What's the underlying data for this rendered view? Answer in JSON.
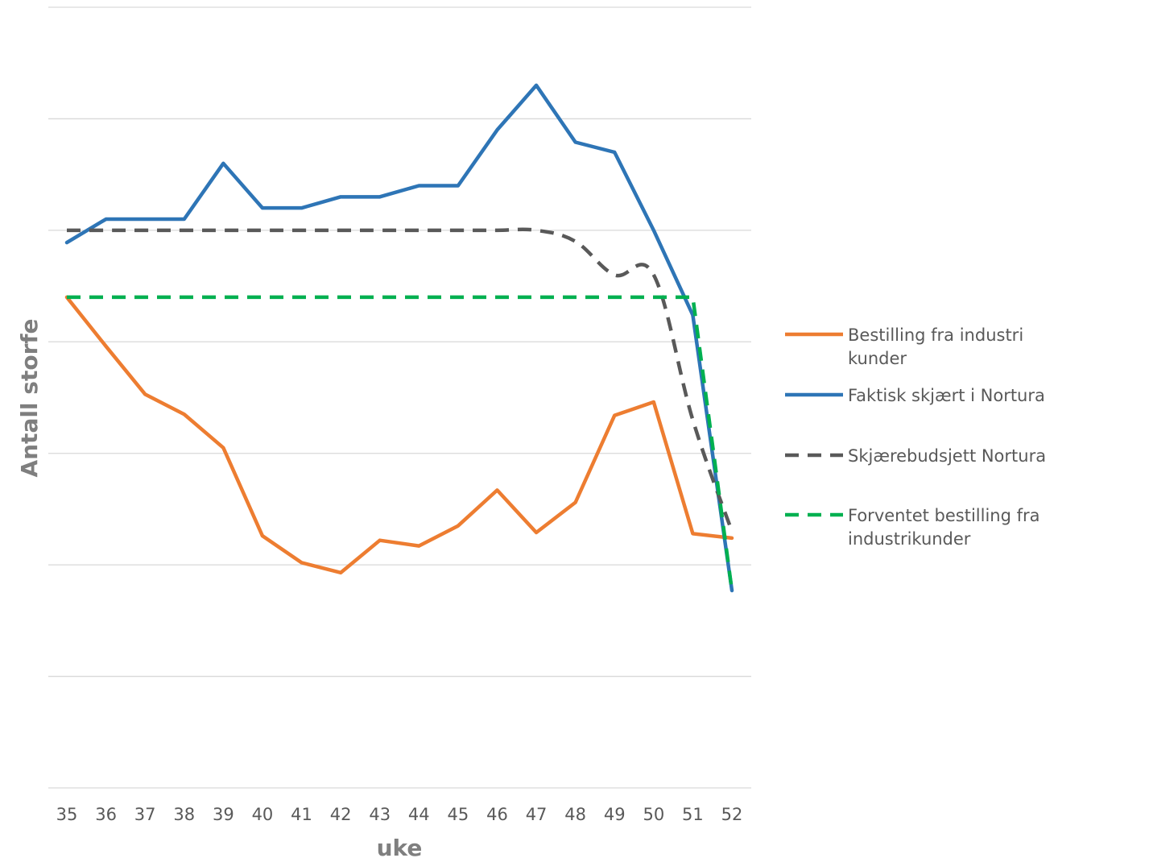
{
  "chart_data": {
    "type": "line",
    "xlabel": "uke",
    "ylabel": "Antall storfe",
    "categories": [
      "35",
      "36",
      "37",
      "38",
      "39",
      "40",
      "41",
      "42",
      "43",
      "44",
      "45",
      "46",
      "47",
      "48",
      "49",
      "50",
      "51",
      "52"
    ],
    "ylim": [
      0,
      7
    ],
    "gridlines": [
      0,
      1,
      2,
      3,
      4,
      5,
      6,
      7
    ],
    "grid": true,
    "y_tick_labels_shown": false,
    "legend_position": "right",
    "series": [
      {
        "name": "Bestilling fra industri kunder",
        "color": "#ED7D31",
        "dash": "solid",
        "smooth": false,
        "values": [
          4.4,
          3.96,
          3.53,
          3.35,
          3.05,
          2.26,
          2.02,
          1.93,
          2.22,
          2.17,
          2.35,
          2.67,
          2.29,
          2.56,
          3.34,
          3.46,
          2.28,
          2.24
        ]
      },
      {
        "name": "Faktisk skjært i Nortura",
        "color": "#2E75B6",
        "dash": "solid",
        "smooth": false,
        "values": [
          4.89,
          5.1,
          5.1,
          5.1,
          5.6,
          5.2,
          5.2,
          5.3,
          5.3,
          5.4,
          5.4,
          5.9,
          6.3,
          5.79,
          5.7,
          5.0,
          4.24,
          1.77
        ]
      },
      {
        "name": "Skjærebudsjett Nortura",
        "color": "#595959",
        "dash": "dashed",
        "smooth": true,
        "values": [
          5.0,
          5.0,
          5.0,
          5.0,
          5.0,
          5.0,
          5.0,
          5.0,
          5.0,
          5.0,
          5.0,
          5.0,
          5.0,
          4.9,
          4.6,
          4.6,
          3.3,
          2.3
        ]
      },
      {
        "name": "Forventet bestilling fra industrikunder",
        "color": "#00B050",
        "dash": "dashed",
        "smooth": false,
        "values": [
          4.4,
          4.4,
          4.4,
          4.4,
          4.4,
          4.4,
          4.4,
          4.4,
          4.4,
          4.4,
          4.4,
          4.4,
          4.4,
          4.4,
          4.4,
          4.4,
          4.4,
          1.77
        ]
      }
    ]
  }
}
